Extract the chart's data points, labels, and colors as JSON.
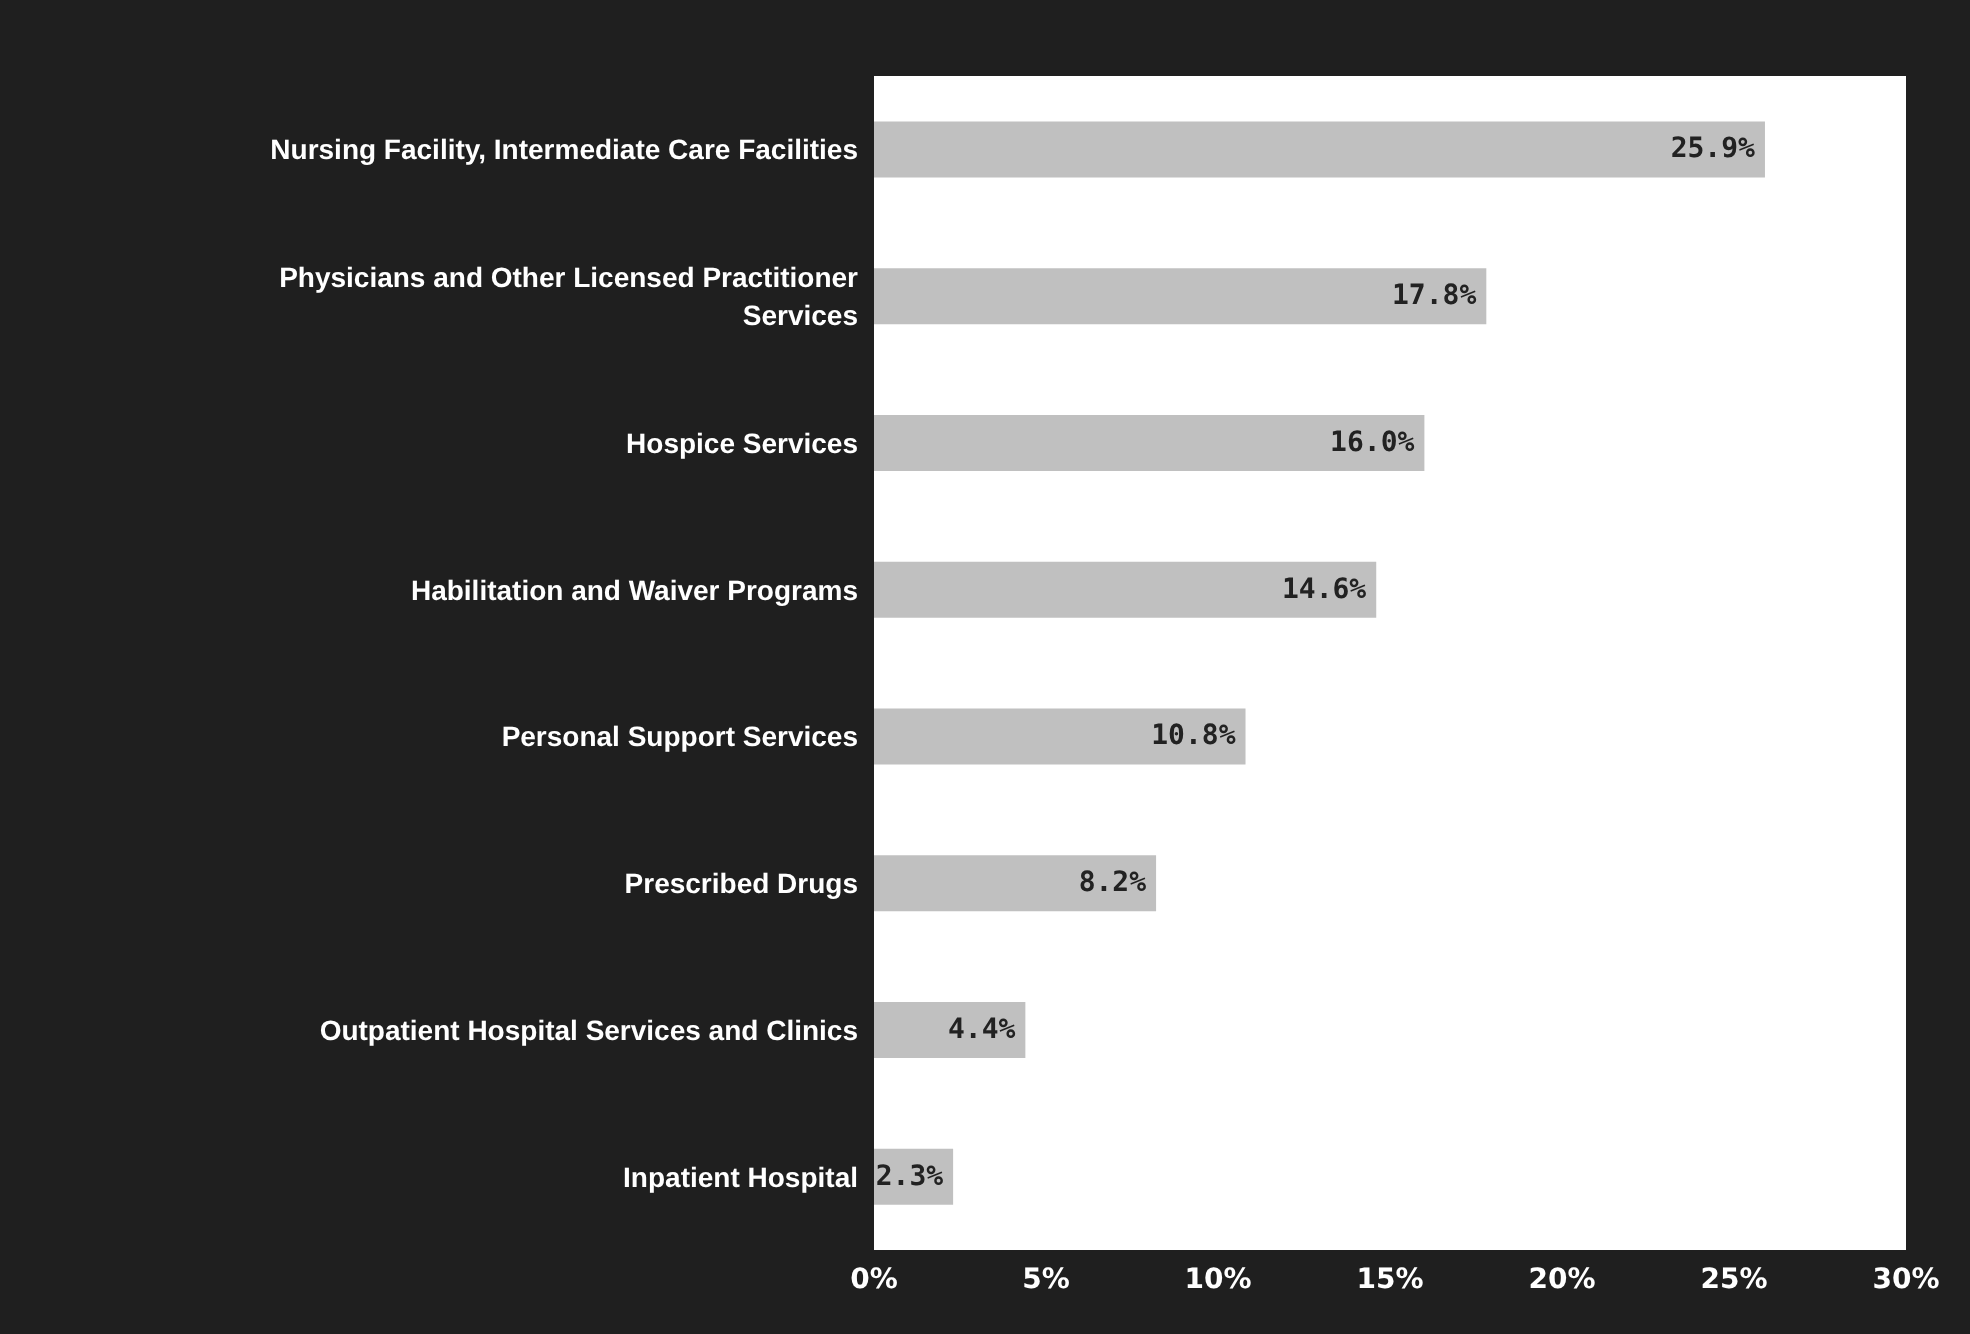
{
  "chart_data": {
    "type": "bar",
    "orientation": "horizontal",
    "categories": [
      "Nursing Facility, Intermediate Care Facilities",
      "Physicians and Other Licensed Practitioner\nServices",
      "Hospice Services",
      "Habilitation and Waiver Programs",
      "Personal Support Services",
      "Prescribed Drugs",
      "Outpatient Hospital Services and Clinics",
      "Inpatient Hospital"
    ],
    "values": [
      25.9,
      17.8,
      16.0,
      14.6,
      10.8,
      8.2,
      4.4,
      2.3
    ],
    "value_labels": [
      "25.9%",
      "17.8%",
      "16.0%",
      "14.6%",
      "10.8%",
      "8.2%",
      "4.4%",
      "2.3%"
    ],
    "color": "#c0c0c0",
    "xlim": [
      0,
      30
    ],
    "xticks": [
      {
        "value": 0,
        "label": "0%"
      },
      {
        "value": 5,
        "label": "5%"
      },
      {
        "value": 10,
        "label": "10%"
      },
      {
        "value": 15,
        "label": "15%"
      },
      {
        "value": 20,
        "label": "20%"
      },
      {
        "value": 25,
        "label": "25%"
      },
      {
        "value": 30,
        "label": "30%"
      }
    ],
    "grid": false
  }
}
